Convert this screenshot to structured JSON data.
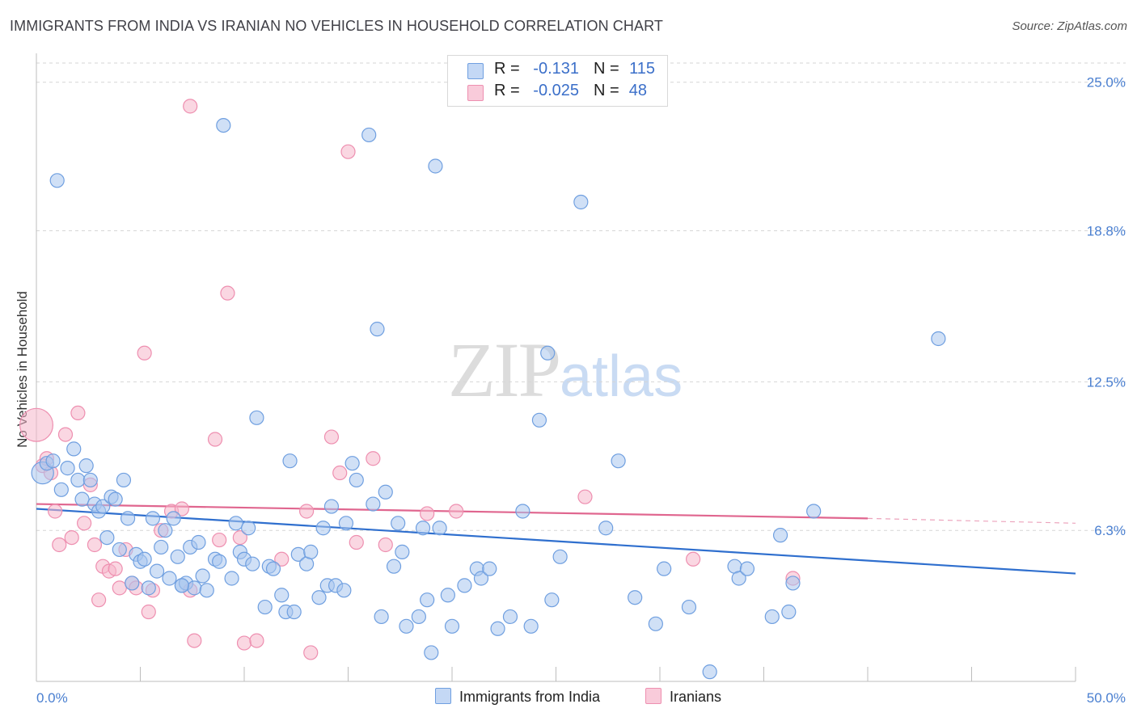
{
  "header": {
    "title": "IMMIGRANTS FROM INDIA VS IRANIAN NO VEHICLES IN HOUSEHOLD CORRELATION CHART",
    "source": "Source: ZipAtlas.com"
  },
  "watermark": {
    "zip": "ZIP",
    "atlas": "atlas"
  },
  "legend": {
    "rows": [
      {
        "r_label": "R =",
        "r_value": "-0.131",
        "n_label": "N =",
        "n_value": "115"
      },
      {
        "r_label": "R =",
        "r_value": "-0.025",
        "n_label": "N =",
        "n_value": "48"
      }
    ]
  },
  "bottom_legend": {
    "india": "Immigrants from India",
    "iranians": "Iranians"
  },
  "colors": {
    "india_fill": "#a9c6ef",
    "india_stroke": "#6f9fe0",
    "india_line": "#2f6fce",
    "iran_fill": "#f6b6cb",
    "iran_stroke": "#ee8fb0",
    "iran_line": "#e0668f",
    "tick_text": "#4a7fd0",
    "grid": "#d6d6d6"
  },
  "chart_data": {
    "type": "scatter",
    "title": "IMMIGRANTS FROM INDIA VS IRANIAN NO VEHICLES IN HOUSEHOLD CORRELATION CHART",
    "xlabel": "",
    "ylabel": "No Vehicles in Household",
    "xlim": [
      0,
      50
    ],
    "ylim": [
      0,
      25.8
    ],
    "x_tick_labels": [
      "0.0%",
      "50.0%"
    ],
    "y_ticks": [
      6.3,
      12.5,
      18.8,
      25.0
    ],
    "y_tick_labels": [
      "6.3%",
      "12.5%",
      "18.8%",
      "25.0%"
    ],
    "grid": "horizontal dashed",
    "legend_placement": "top-center",
    "series": [
      {
        "name": "Immigrants from India",
        "color": "#a9c6ef",
        "r": -0.131,
        "n": 115,
        "trend": {
          "x": [
            0,
            50
          ],
          "y": [
            7.2,
            4.5
          ]
        },
        "points": [
          [
            0.3,
            8.7,
            1.6
          ],
          [
            0.5,
            9.1,
            1.0
          ],
          [
            0.8,
            9.2,
            1.0
          ],
          [
            1.0,
            20.9,
            1.0
          ],
          [
            1.2,
            8.0,
            1.0
          ],
          [
            1.5,
            8.9,
            1.0
          ],
          [
            1.8,
            9.7,
            1.0
          ],
          [
            2.0,
            8.4,
            1.0
          ],
          [
            2.2,
            7.6,
            1.0
          ],
          [
            2.4,
            9.0,
            1.0
          ],
          [
            2.6,
            8.4,
            1.0
          ],
          [
            2.8,
            7.4,
            1.0
          ],
          [
            3.0,
            7.1,
            1.0
          ],
          [
            3.2,
            7.3,
            1.0
          ],
          [
            3.4,
            6.0,
            1.0
          ],
          [
            3.6,
            7.7,
            1.0
          ],
          [
            3.8,
            7.6,
            1.0
          ],
          [
            4.0,
            5.5,
            1.0
          ],
          [
            4.2,
            8.4,
            1.0
          ],
          [
            4.4,
            6.8,
            1.0
          ],
          [
            4.6,
            4.1,
            1.0
          ],
          [
            4.8,
            5.3,
            1.0
          ],
          [
            5.0,
            5.0,
            1.0
          ],
          [
            5.2,
            5.1,
            1.0
          ],
          [
            5.4,
            3.9,
            1.0
          ],
          [
            5.6,
            6.8,
            1.0
          ],
          [
            5.8,
            4.6,
            1.0
          ],
          [
            6.0,
            5.6,
            1.0
          ],
          [
            6.2,
            6.3,
            1.0
          ],
          [
            6.4,
            4.3,
            1.0
          ],
          [
            6.6,
            6.8,
            1.0
          ],
          [
            6.8,
            5.2,
            1.0
          ],
          [
            7.0,
            4.0,
            1.0
          ],
          [
            7.2,
            4.1,
            1.0
          ],
          [
            7.4,
            5.6,
            1.0
          ],
          [
            7.6,
            3.9,
            1.0
          ],
          [
            7.8,
            5.8,
            1.0
          ],
          [
            8.0,
            4.4,
            1.0
          ],
          [
            8.2,
            3.8,
            1.0
          ],
          [
            8.6,
            5.1,
            1.0
          ],
          [
            8.8,
            5.0,
            1.0
          ],
          [
            9.0,
            23.2,
            1.0
          ],
          [
            9.4,
            4.3,
            1.0
          ],
          [
            9.6,
            6.6,
            1.0
          ],
          [
            9.8,
            5.4,
            1.0
          ],
          [
            10.0,
            5.1,
            1.0
          ],
          [
            10.2,
            6.4,
            1.0
          ],
          [
            10.4,
            4.9,
            1.0
          ],
          [
            10.6,
            11.0,
            1.0
          ],
          [
            11.0,
            3.1,
            1.0
          ],
          [
            11.2,
            4.8,
            1.0
          ],
          [
            11.4,
            4.7,
            1.0
          ],
          [
            11.8,
            3.6,
            1.0
          ],
          [
            12.0,
            2.9,
            1.0
          ],
          [
            12.2,
            9.2,
            1.0
          ],
          [
            12.4,
            2.9,
            1.0
          ],
          [
            12.6,
            5.3,
            1.0
          ],
          [
            13.0,
            4.9,
            1.0
          ],
          [
            13.2,
            5.4,
            1.0
          ],
          [
            13.6,
            3.5,
            1.0
          ],
          [
            13.8,
            6.4,
            1.0
          ],
          [
            14.0,
            4.0,
            1.0
          ],
          [
            14.2,
            7.3,
            1.0
          ],
          [
            14.4,
            4.0,
            1.0
          ],
          [
            14.8,
            3.8,
            1.0
          ],
          [
            14.9,
            6.6,
            1.0
          ],
          [
            15.2,
            9.1,
            1.0
          ],
          [
            15.4,
            8.4,
            1.0
          ],
          [
            16.0,
            22.8,
            1.0
          ],
          [
            16.2,
            7.4,
            1.0
          ],
          [
            16.4,
            14.7,
            1.0
          ],
          [
            16.6,
            2.7,
            1.0
          ],
          [
            16.8,
            7.9,
            1.0
          ],
          [
            17.2,
            4.8,
            1.0
          ],
          [
            17.4,
            6.6,
            1.0
          ],
          [
            17.6,
            5.4,
            1.0
          ],
          [
            17.8,
            2.3,
            1.0
          ],
          [
            18.4,
            2.7,
            1.0
          ],
          [
            18.6,
            6.4,
            1.0
          ],
          [
            18.8,
            3.4,
            1.0
          ],
          [
            19.0,
            1.2,
            1.0
          ],
          [
            19.2,
            21.5,
            1.0
          ],
          [
            19.8,
            3.6,
            1.0
          ],
          [
            20.0,
            2.3,
            1.0
          ],
          [
            20.6,
            4.0,
            1.0
          ],
          [
            21.2,
            4.7,
            1.0
          ],
          [
            21.4,
            4.3,
            1.0
          ],
          [
            21.8,
            4.7,
            1.0
          ],
          [
            22.2,
            2.2,
            1.0
          ],
          [
            22.8,
            2.7,
            1.0
          ],
          [
            23.4,
            7.1,
            1.0
          ],
          [
            23.8,
            2.3,
            1.0
          ],
          [
            24.2,
            10.9,
            1.0
          ],
          [
            24.6,
            13.7,
            1.0
          ],
          [
            24.8,
            3.4,
            1.0
          ],
          [
            25.2,
            5.2,
            1.0
          ],
          [
            26.2,
            20.0,
            1.0
          ],
          [
            27.4,
            6.4,
            1.0
          ],
          [
            28.0,
            9.2,
            1.0
          ],
          [
            28.8,
            3.5,
            1.0
          ],
          [
            29.8,
            2.4,
            1.0
          ],
          [
            30.2,
            4.7,
            1.0
          ],
          [
            31.4,
            3.1,
            1.0
          ],
          [
            32.4,
            0.4,
            1.0
          ],
          [
            33.6,
            4.8,
            1.0
          ],
          [
            33.8,
            4.3,
            1.0
          ],
          [
            34.2,
            4.7,
            1.0
          ],
          [
            35.4,
            2.7,
            1.0
          ],
          [
            35.8,
            6.1,
            1.0
          ],
          [
            36.2,
            2.9,
            1.0
          ],
          [
            36.4,
            4.1,
            1.0
          ],
          [
            37.4,
            7.1,
            1.0
          ],
          [
            43.4,
            14.3,
            1.0
          ],
          [
            19.4,
            6.4,
            1.0
          ],
          [
            7.0,
            4.0,
            1.0
          ]
        ]
      },
      {
        "name": "Iranians",
        "color": "#f6b6cb",
        "r": -0.025,
        "n": 48,
        "trend": {
          "x": [
            0,
            40
          ],
          "y": [
            7.4,
            6.8
          ],
          "dashed_extension": {
            "x": [
              40,
              50
            ],
            "y": [
              6.8,
              6.6
            ]
          }
        },
        "points": [
          [
            0.0,
            10.7,
            2.4
          ],
          [
            0.3,
            9.0,
            1.0
          ],
          [
            0.5,
            9.3,
            1.0
          ],
          [
            0.7,
            8.7,
            1.0
          ],
          [
            0.9,
            7.1,
            1.0
          ],
          [
            1.1,
            5.7,
            1.0
          ],
          [
            1.4,
            10.3,
            1.0
          ],
          [
            1.7,
            6.0,
            1.0
          ],
          [
            2.0,
            11.2,
            1.0
          ],
          [
            2.3,
            6.6,
            1.0
          ],
          [
            2.6,
            8.2,
            1.0
          ],
          [
            2.8,
            5.7,
            1.0
          ],
          [
            3.0,
            3.4,
            1.0
          ],
          [
            3.2,
            4.8,
            1.0
          ],
          [
            3.5,
            4.6,
            1.0
          ],
          [
            3.8,
            4.7,
            1.0
          ],
          [
            4.0,
            3.9,
            1.0
          ],
          [
            4.3,
            5.5,
            1.0
          ],
          [
            4.6,
            4.1,
            1.0
          ],
          [
            4.8,
            3.9,
            1.0
          ],
          [
            5.2,
            13.7,
            1.0
          ],
          [
            5.4,
            2.9,
            1.0
          ],
          [
            5.6,
            3.8,
            1.0
          ],
          [
            6.0,
            6.3,
            1.0
          ],
          [
            6.5,
            7.1,
            1.0
          ],
          [
            7.0,
            7.2,
            1.0
          ],
          [
            7.4,
            3.8,
            1.0
          ],
          [
            7.6,
            1.7,
            1.0
          ],
          [
            7.4,
            24.0,
            1.0
          ],
          [
            8.6,
            10.1,
            1.0
          ],
          [
            8.8,
            5.9,
            1.0
          ],
          [
            9.2,
            16.2,
            1.0
          ],
          [
            9.8,
            6.0,
            1.0
          ],
          [
            10.0,
            1.6,
            1.0
          ],
          [
            10.6,
            1.7,
            1.0
          ],
          [
            11.8,
            5.1,
            1.0
          ],
          [
            13.0,
            7.1,
            1.0
          ],
          [
            13.2,
            1.2,
            1.0
          ],
          [
            14.2,
            10.2,
            1.0
          ],
          [
            14.6,
            8.7,
            1.0
          ],
          [
            15.0,
            22.1,
            1.0
          ],
          [
            15.4,
            5.8,
            1.0
          ],
          [
            16.2,
            9.3,
            1.0
          ],
          [
            16.8,
            5.7,
            1.0
          ],
          [
            18.8,
            7.0,
            1.0
          ],
          [
            20.2,
            7.1,
            1.0
          ],
          [
            26.4,
            7.7,
            1.0
          ],
          [
            31.6,
            5.1,
            1.0
          ],
          [
            36.4,
            4.3,
            1.0
          ]
        ]
      }
    ]
  }
}
